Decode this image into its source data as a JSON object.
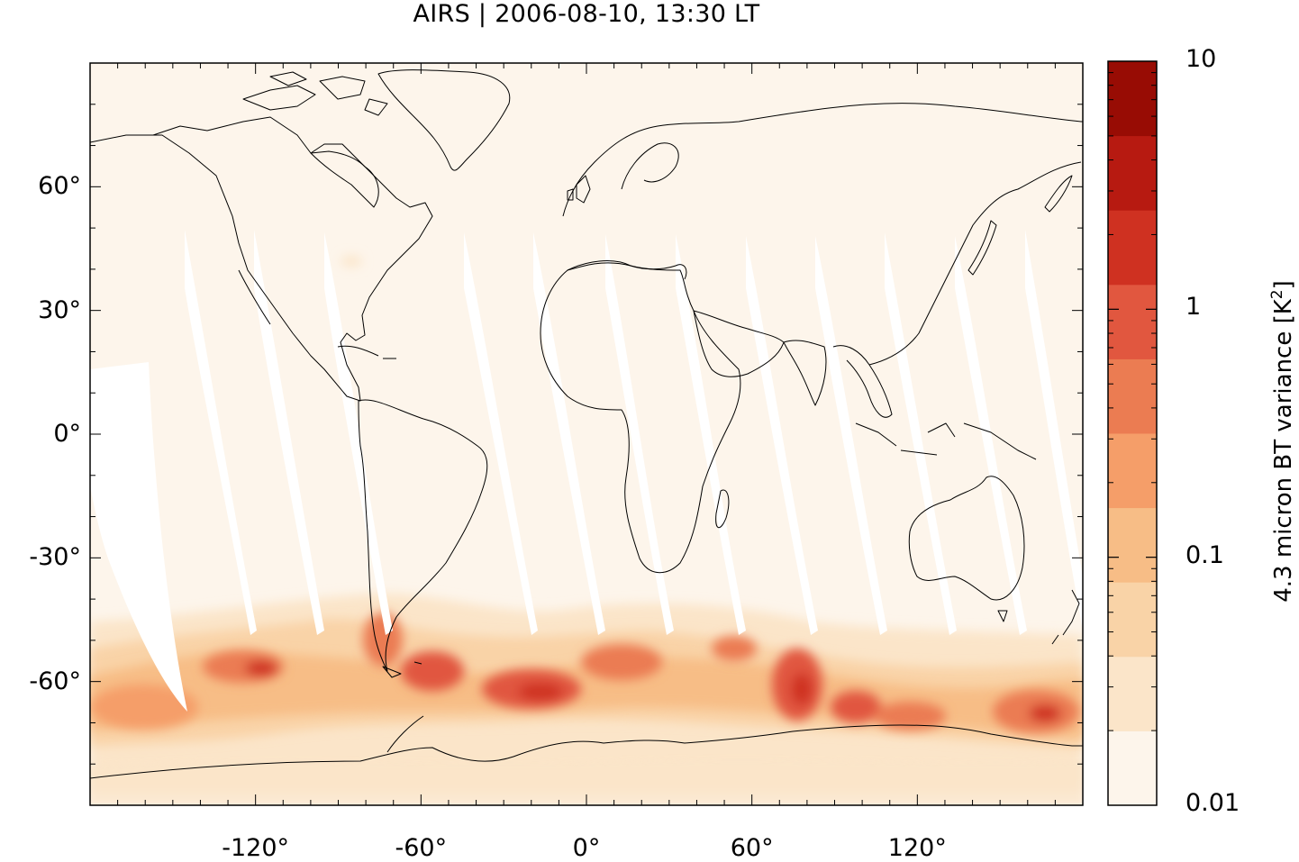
{
  "title": "AIRS | 2006-08-10, 13:30 LT",
  "map": {
    "projection": "equirectangular",
    "lon_range": [
      -180,
      180
    ],
    "lat_range": [
      -90,
      90
    ],
    "coastlines": true,
    "background_color": "#fdf5eb",
    "swath_gap_color": "#ffffff",
    "coastline_color": "#000000"
  },
  "yticks": [
    {
      "value": 60,
      "label": "60°"
    },
    {
      "value": 30,
      "label": "30°"
    },
    {
      "value": 0,
      "label": "0°"
    },
    {
      "value": -30,
      "label": "-30°"
    },
    {
      "value": -60,
      "label": "-60°"
    }
  ],
  "xticks": [
    {
      "value": -120,
      "label": "-120°"
    },
    {
      "value": -60,
      "label": "-60°"
    },
    {
      "value": 0,
      "label": "0°"
    },
    {
      "value": 60,
      "label": "60°"
    },
    {
      "value": 120,
      "label": "120°"
    }
  ],
  "colorbar": {
    "label": "4.3 micron BT variance [K",
    "label_sup": "2",
    "label_end": "]",
    "scale": "log",
    "range": [
      0.01,
      10
    ],
    "tick_labels": [
      {
        "value": 10,
        "label": "10"
      },
      {
        "value": 1,
        "label": "1"
      },
      {
        "value": 0.1,
        "label": "0.1"
      },
      {
        "value": 0.01,
        "label": "0.01"
      }
    ],
    "colors": [
      "#fdf5eb",
      "#fbe5c9",
      "#f9d3a7",
      "#f7bd86",
      "#f59e69",
      "#eb7c52",
      "#e1573f",
      "#cf3121",
      "#b71a11",
      "#980c04"
    ]
  }
}
